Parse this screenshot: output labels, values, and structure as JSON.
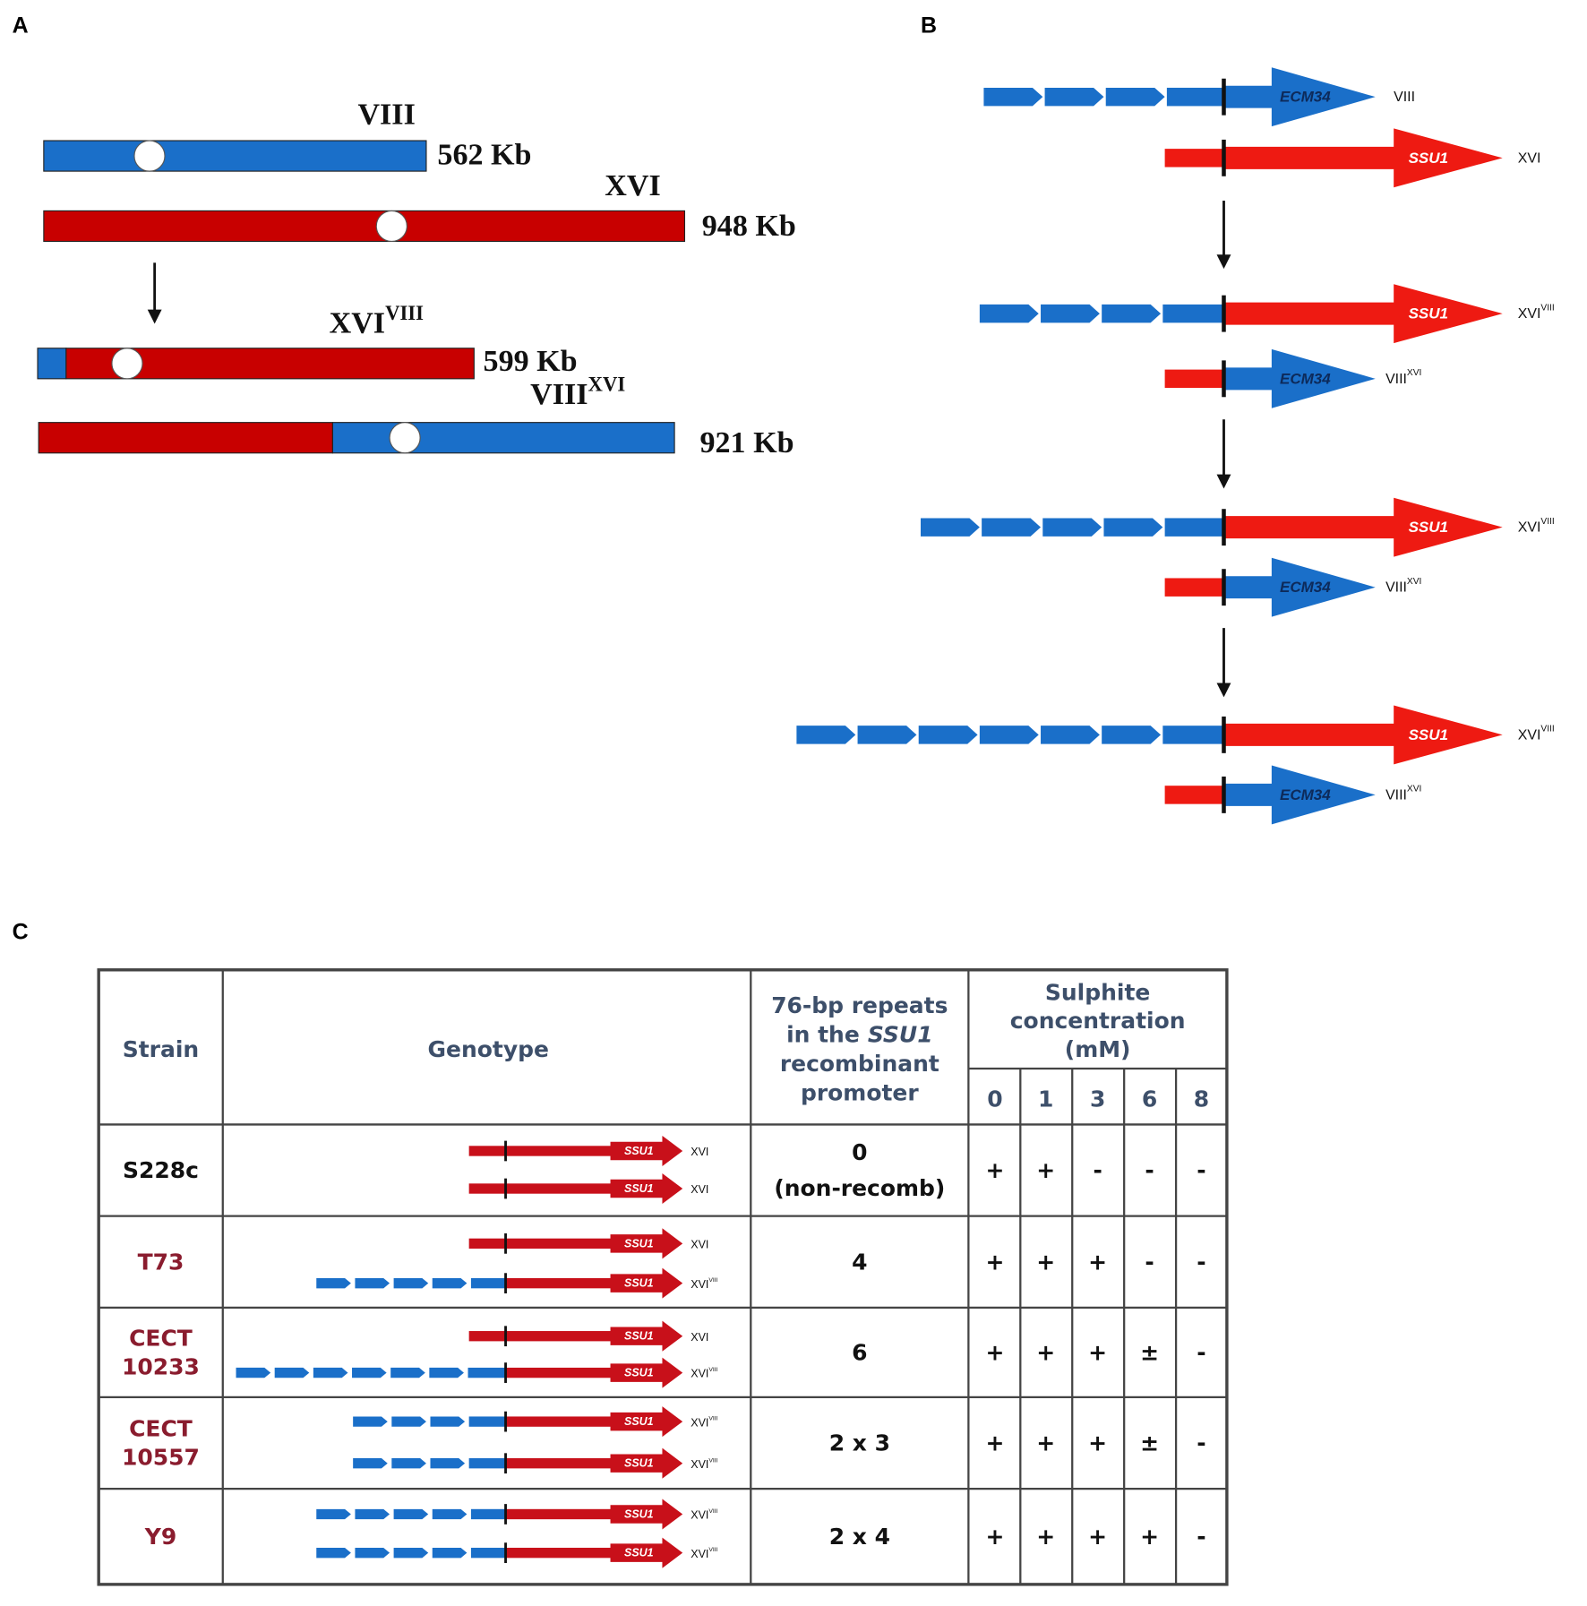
{
  "panels": {
    "a": "A",
    "b": "B",
    "c": "C"
  },
  "panel_a": {
    "chromosomes": [
      {
        "name": "VIII",
        "size": "562 Kb"
      },
      {
        "name": "XVI",
        "size": "948 Kb"
      },
      {
        "name": "XVI",
        "superscript": "VIII",
        "size": "599 Kb"
      },
      {
        "name": "VIII",
        "superscript": "XVI",
        "size": "921 Kb"
      }
    ]
  },
  "panel_b": {
    "genes": {
      "ecm34": "ECM34",
      "ssu1": "SSU1"
    },
    "rows": [
      {
        "label": "VIII"
      },
      {
        "label": "XVI"
      },
      {
        "label": "XVI",
        "superscript": "VIII"
      },
      {
        "label": "VIII",
        "superscript": "XVI"
      },
      {
        "label": "XVI",
        "superscript": "VIII"
      },
      {
        "label": "VIII",
        "superscript": "XVI"
      },
      {
        "label": "XVI",
        "superscript": "VIII"
      },
      {
        "label": "VIII",
        "superscript": "XVI"
      }
    ]
  },
  "table": {
    "header": {
      "strain": "Strain",
      "genotype": "Genotype",
      "repeats": {
        "line1": "76-bp repeats",
        "line2": "in the",
        "gene": "SSU1",
        "line3": "recombinant",
        "line4": "promoter"
      },
      "sulphite": [
        "Sulphite",
        "concentration",
        "(mM)"
      ],
      "concentrations": [
        0,
        1,
        3,
        6,
        8
      ]
    },
    "rows": [
      {
        "strain": [
          "S228c"
        ],
        "genotype": [
          {
            "gene": "SSU1",
            "chromosome": "XVI"
          },
          {
            "gene": "SSU1",
            "chromosome": "XVI"
          }
        ],
        "repeats": [
          "0",
          "(non-recomb)"
        ],
        "growth": [
          "+",
          "+",
          "-",
          "-",
          "-"
        ]
      },
      {
        "strain": [
          "T73"
        ],
        "genotype": [
          {
            "gene": "SSU1",
            "chromosome": "XVI"
          },
          {
            "gene": "SSU1",
            "chromosome": "XVI",
            "superscript": "VIII"
          }
        ],
        "repeats": [
          "4"
        ],
        "growth": [
          "+",
          "+",
          "+",
          "-",
          "-"
        ]
      },
      {
        "strain": [
          "CECT",
          "10233"
        ],
        "genotype": [
          {
            "gene": "SSU1",
            "chromosome": "XVI"
          },
          {
            "gene": "SSU1",
            "chromosome": "XVI",
            "superscript": "VIII"
          }
        ],
        "repeats": [
          "6"
        ],
        "growth": [
          "+",
          "+",
          "+",
          "±",
          "-"
        ]
      },
      {
        "strain": [
          "CECT",
          "10557"
        ],
        "genotype": [
          {
            "gene": "SSU1",
            "chromosome": "XVI",
            "superscript": "VIII"
          },
          {
            "gene": "SSU1",
            "chromosome": "XVI",
            "superscript": "VIII"
          }
        ],
        "repeats": [
          "2 x 3"
        ],
        "growth": [
          "+",
          "+",
          "+",
          "±",
          "-"
        ]
      },
      {
        "strain": [
          "Y9"
        ],
        "genotype": [
          {
            "gene": "SSU1",
            "chromosome": "XVI",
            "superscript": "VIII"
          },
          {
            "gene": "SSU1",
            "chromosome": "XVI",
            "superscript": "VIII"
          }
        ],
        "repeats": [
          "2 x 4"
        ],
        "growth": [
          "+",
          "+",
          "+",
          "+",
          "-"
        ]
      }
    ]
  }
}
